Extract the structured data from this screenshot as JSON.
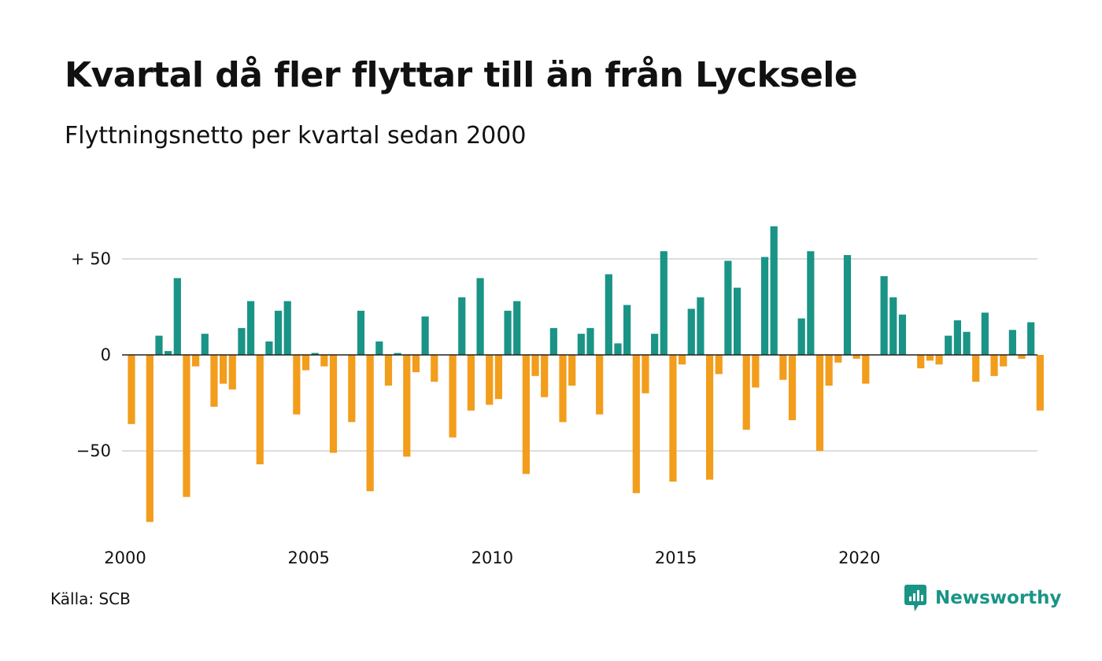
{
  "title": "Kvartal då fler flyttar till än från Lycksele",
  "subtitle": "Flyttningsnetto per kvartal sedan 2000",
  "source": "Källa: SCB",
  "brand": {
    "name": "Newsworthy",
    "icon": "newsworthy-logo-icon",
    "color": "#1a9486"
  },
  "colors": {
    "positive": "#1a9486",
    "negative": "#f29d1c",
    "grid": "#dddddd",
    "zero_line": "#222222"
  },
  "chart_data": {
    "type": "bar",
    "x_start": "2000-Q1",
    "ylim": [
      -90,
      70
    ],
    "grid": true,
    "y_ticks": [
      {
        "value": 50,
        "label": "+ 50"
      },
      {
        "value": 0,
        "label": "0"
      },
      {
        "value": -50,
        "label": "−50"
      }
    ],
    "x_ticks": [
      {
        "index": 0,
        "label": "2000"
      },
      {
        "index": 20,
        "label": "2005"
      },
      {
        "index": 40,
        "label": "2010"
      },
      {
        "index": 60,
        "label": "2015"
      },
      {
        "index": 80,
        "label": "2020"
      }
    ],
    "values": [
      -36,
      0,
      -87,
      10,
      2,
      40,
      -74,
      -6,
      11,
      -27,
      -15,
      -18,
      14,
      28,
      -57,
      7,
      23,
      28,
      -31,
      -8,
      1,
      -6,
      -51,
      0,
      -35,
      23,
      -71,
      7,
      -16,
      1,
      -53,
      -9,
      20,
      -14,
      0,
      -43,
      30,
      -29,
      40,
      -26,
      -23,
      23,
      28,
      -62,
      -11,
      -22,
      14,
      -35,
      -16,
      11,
      14,
      -31,
      42,
      6,
      26,
      -72,
      -20,
      11,
      54,
      -66,
      -5,
      24,
      30,
      -65,
      -10,
      49,
      35,
      -39,
      -17,
      51,
      67,
      -13,
      -34,
      19,
      54,
      -50,
      -16,
      -4,
      52,
      -2,
      -15,
      0,
      41,
      30,
      21,
      0,
      -7,
      -3,
      -5,
      10,
      18,
      12,
      -14,
      22,
      -11,
      -6,
      13,
      -2,
      17,
      -29
    ]
  }
}
